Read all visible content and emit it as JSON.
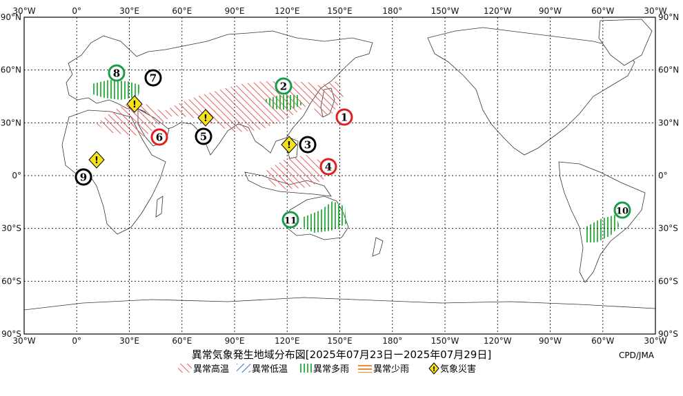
{
  "title": "異常気象発生地域分布図[2025年07月23日ー2025年07月29日]",
  "credit": "CPD/JMA",
  "axes": {
    "lon_top": [
      "30°W",
      "0°",
      "30°E",
      "60°E",
      "90°E",
      "120°E",
      "150°E",
      "180°",
      "150°W",
      "120°W",
      "90°W",
      "60°W",
      "30°W"
    ],
    "lon_bottom": [
      "30°W",
      "0°",
      "30°E",
      "60°E",
      "90°E",
      "120°E",
      "150°E",
      "180°",
      "150°W",
      "120°W",
      "90°W",
      "60°W",
      "30°W"
    ],
    "lat_left": [
      "90°N",
      "60°N",
      "30°N",
      "0°",
      "30°S",
      "60°S",
      "90°S"
    ],
    "lat_right": [
      "90°N",
      "60°N",
      "30°N",
      "0°",
      "30°S",
      "60°S",
      "90°S"
    ]
  },
  "legend": [
    {
      "label": "異常高温",
      "color": "#e85c5c",
      "pattern": "hot"
    },
    {
      "label": "異常低温",
      "color": "#3f6fd8",
      "pattern": "cold"
    },
    {
      "label": "異常多雨",
      "color": "#39b54a",
      "pattern": "wet"
    },
    {
      "label": "異常少雨",
      "color": "#f08a2c",
      "pattern": "dry"
    },
    {
      "label": "気象災害",
      "color": "#f5e21a",
      "pattern": "disaster"
    }
  ],
  "regions": [
    {
      "id": "1",
      "type": "hot",
      "marker_color": "#e0201e"
    },
    {
      "id": "2",
      "type": "wet",
      "marker_color": "#1a9c4a"
    },
    {
      "id": "3",
      "type": "disaster",
      "marker_color": "#000000"
    },
    {
      "id": "4",
      "type": "hot",
      "marker_color": "#e0201e"
    },
    {
      "id": "5",
      "type": "disaster",
      "marker_color": "#000000"
    },
    {
      "id": "6",
      "type": "hot",
      "marker_color": "#e0201e"
    },
    {
      "id": "7",
      "type": "disaster",
      "marker_color": "#000000"
    },
    {
      "id": "8",
      "type": "wet",
      "marker_color": "#1a9c4a"
    },
    {
      "id": "9",
      "type": "disaster",
      "marker_color": "#000000"
    },
    {
      "id": "10",
      "type": "wet",
      "marker_color": "#1a9c4a"
    },
    {
      "id": "11",
      "type": "wet",
      "marker_color": "#1a9c4a"
    }
  ],
  "disaster_icon": "!"
}
